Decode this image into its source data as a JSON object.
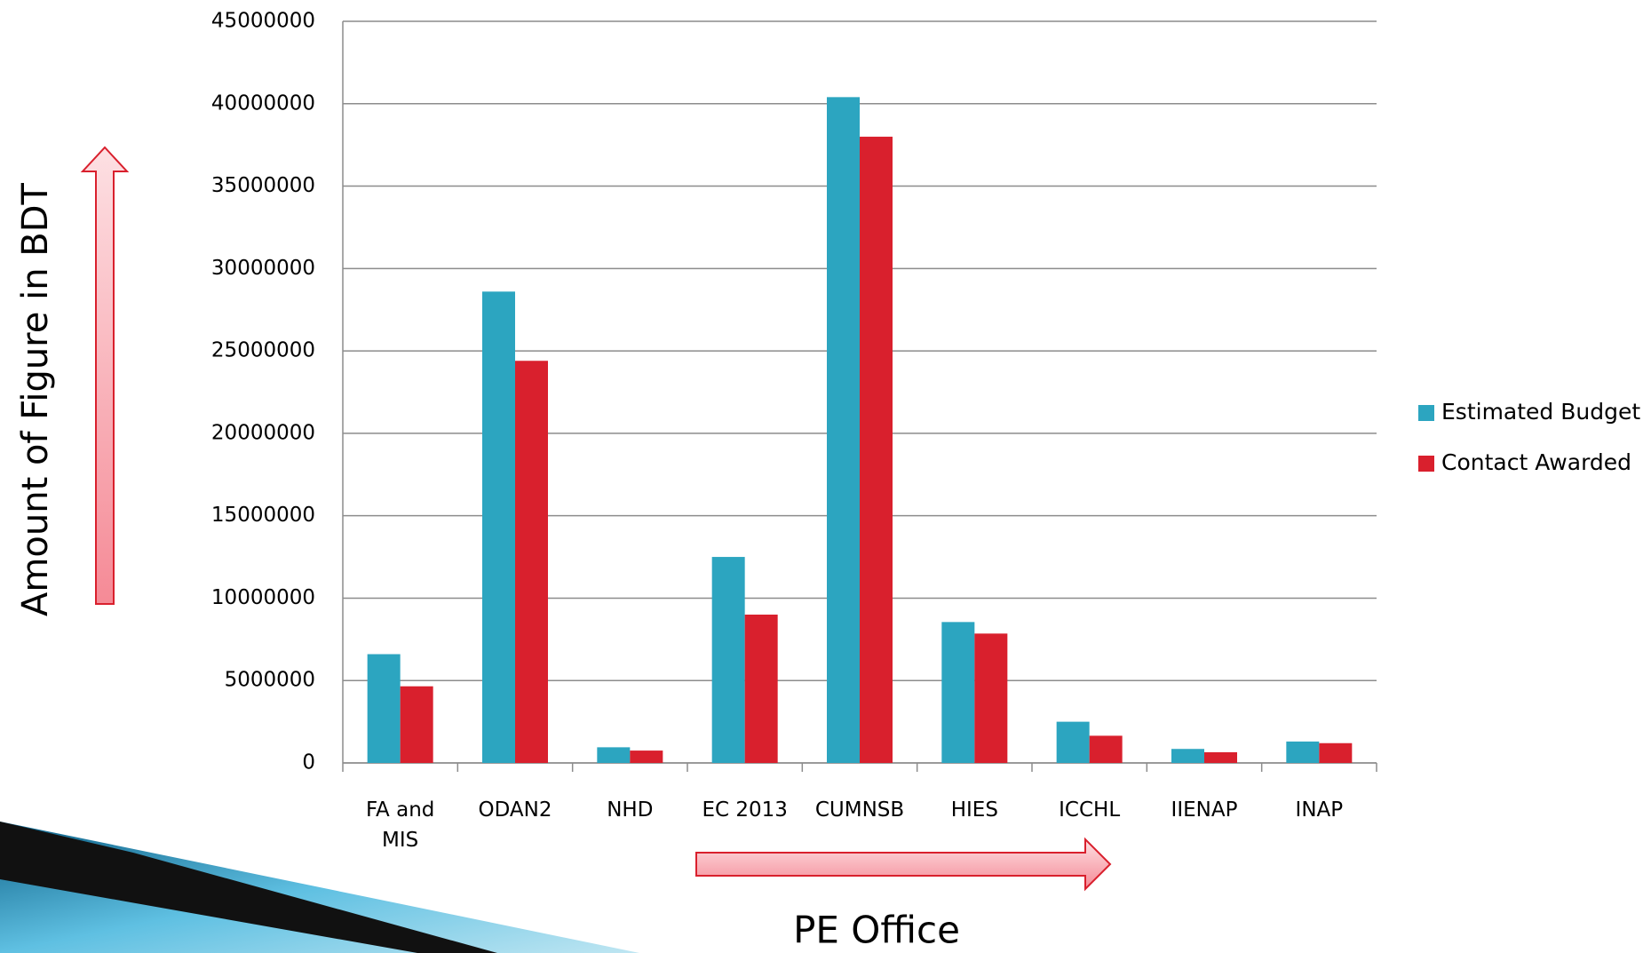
{
  "chart_data": {
    "type": "bar",
    "y_axis_label": "Amount of Figure in BDT",
    "x_axis_label": "PE Office",
    "categories": [
      "FA and MIS",
      "ODAN2",
      "NHD",
      "EC 2013",
      "CUMNSB",
      "HIES",
      "ICCHL",
      "IIENAP",
      "INAP"
    ],
    "series": [
      {
        "name": "Estimated Budget",
        "color": "#2ca5c0",
        "values": [
          6600000,
          28600000,
          950000,
          12500000,
          40400000,
          8550000,
          2500000,
          850000,
          1300000
        ]
      },
      {
        "name": "Contact Awarded",
        "color": "#d9202d",
        "values": [
          4650000,
          24400000,
          750000,
          9000000,
          38000000,
          7850000,
          1650000,
          650000,
          1200000
        ]
      }
    ],
    "ylim": [
      0,
      45000000
    ],
    "yticks": [
      0,
      5000000,
      10000000,
      15000000,
      20000000,
      25000000,
      30000000,
      35000000,
      40000000,
      45000000
    ],
    "grid": true,
    "legend": "right"
  }
}
